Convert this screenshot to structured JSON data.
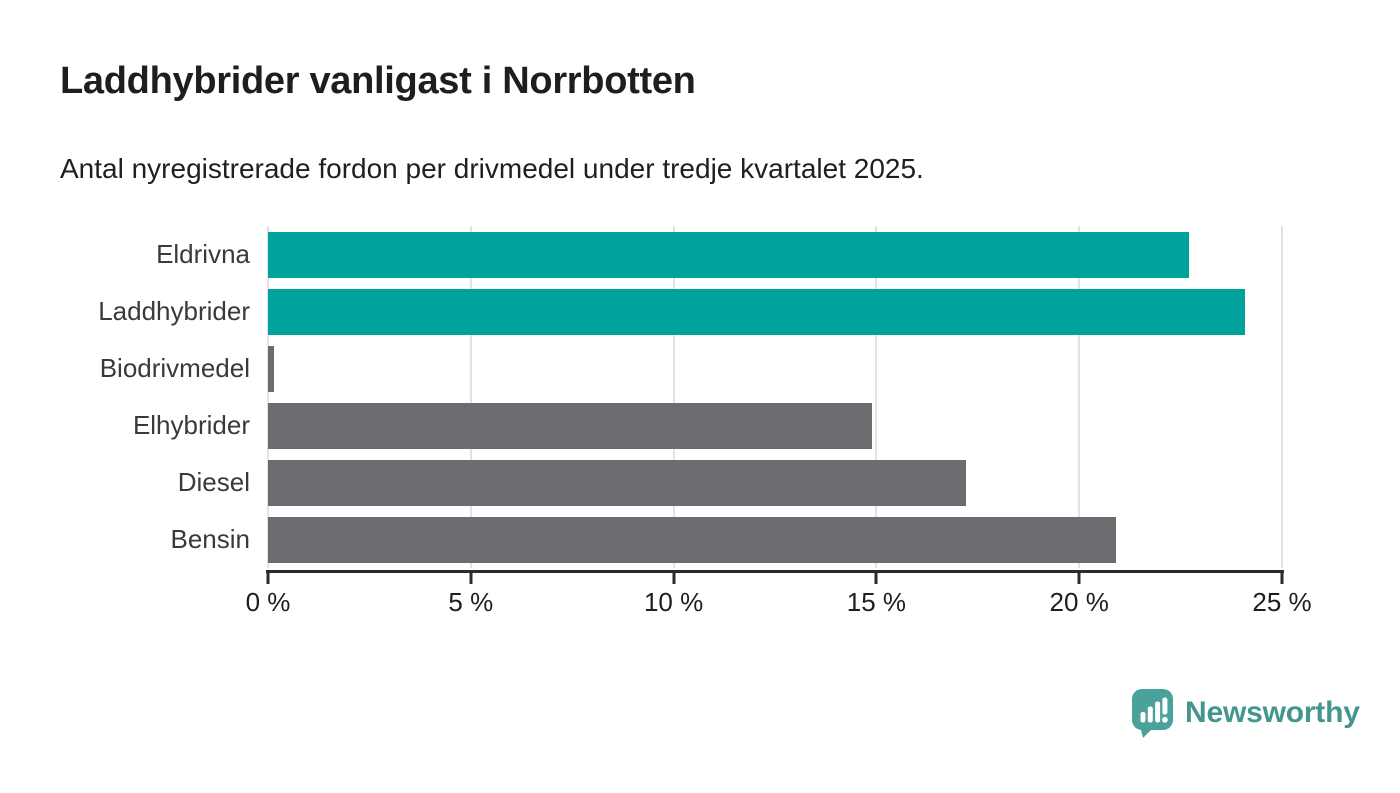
{
  "header": {
    "title": "Laddhybrider vanligast i Norrbotten",
    "subtitle": "Antal nyregistrerade fordon per drivmedel under tredje kvartalet 2025."
  },
  "chart_data": {
    "type": "bar",
    "orientation": "horizontal",
    "title": "Laddhybrider vanligast i Norrbotten",
    "subtitle": "Antal nyregistrerade fordon per drivmedel under tredje kvartalet 2025.",
    "categories": [
      "Eldrivna",
      "Laddhybrider",
      "Biodrivmedel",
      "Elhybrider",
      "Diesel",
      "Bensin"
    ],
    "values": [
      22.7,
      24.1,
      0.15,
      14.9,
      17.2,
      20.9
    ],
    "bar_colors": [
      "#00A39B",
      "#00A39B",
      "#6B6B70",
      "#6B6B70",
      "#6B6B70",
      "#6B6B70"
    ],
    "xlabel": "",
    "ylabel": "",
    "xlim": [
      0,
      25
    ],
    "xticks": [
      0,
      5,
      10,
      15,
      20,
      25
    ],
    "xtick_labels": [
      "0 %",
      "5 %",
      "10 %",
      "15 %",
      "20 %",
      "25 %"
    ],
    "grid": "vertical",
    "legend": "none",
    "colors": {
      "highlight": "#00A39B",
      "default": "#6B6B70",
      "gridline": "#E3E3E3",
      "axis": "#2B2B2B"
    }
  },
  "branding": {
    "logo_text": "Newsworthy",
    "logo_icon": "newsworthy-bubble-barchart-icon",
    "logo_text_color": "#43968F",
    "logo_icon_color": "#4BA29B"
  }
}
